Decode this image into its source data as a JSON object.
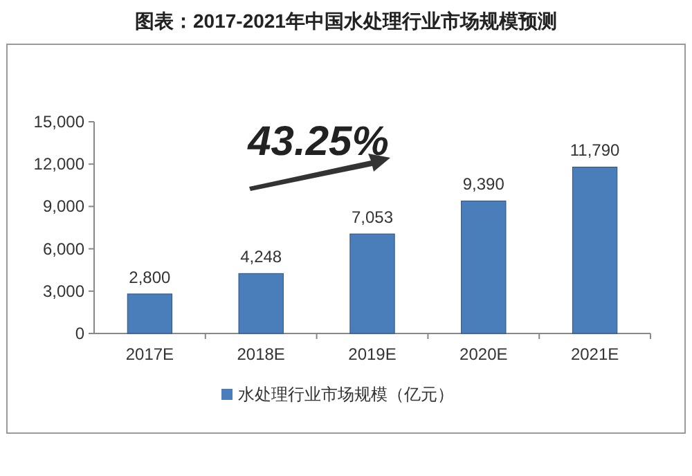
{
  "chart_data": {
    "type": "bar",
    "title": "图表：2017-2021年中国水处理行业市场规模预测",
    "categories": [
      "2017E",
      "2018E",
      "2019E",
      "2020E",
      "2021E"
    ],
    "series": [
      {
        "name": "水处理行业市场规模（亿元）",
        "color": "#4a7ebb",
        "values": [
          2800,
          4248,
          7053,
          9390,
          11790
        ],
        "value_labels": [
          "2,800",
          "4,248",
          "7,053",
          "9,390",
          "11,790"
        ]
      }
    ],
    "ylim": [
      0,
      15000
    ],
    "yticks": [
      0,
      {
        "value": 3000,
        "label": "3,000"
      },
      {
        "value": 6000,
        "label": "6,000"
      },
      {
        "value": 9000,
        "label": "9,000"
      },
      {
        "value": 12000,
        "label": "12,000"
      },
      {
        "value": 15000,
        "label": "15,000"
      }
    ],
    "annotations": [
      "43.25%"
    ],
    "legend": "bottom",
    "grid": false
  }
}
